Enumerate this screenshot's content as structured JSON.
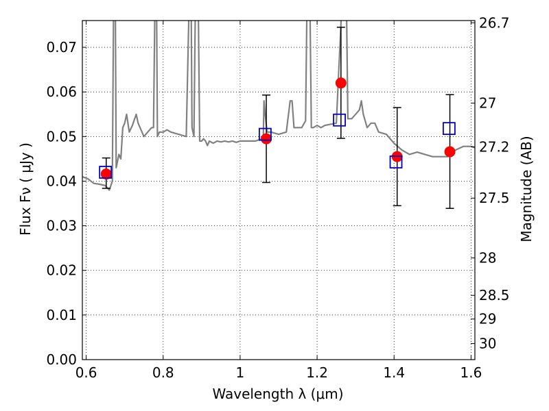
{
  "chart_data": {
    "type": "scatter",
    "xlabel": "Wavelength  λ (μm)",
    "ylabel": "Flux  Fν  ( μJy )",
    "y2label": "Magnitude (AB)",
    "xlim": [
      0.59,
      1.61
    ],
    "ylim": [
      0.0,
      0.076
    ],
    "grid": true,
    "x_ticks": [
      0.6,
      0.8,
      1.0,
      1.2,
      1.4,
      1.6
    ],
    "x_tick_labels": [
      "0.6",
      "0.8",
      "1",
      "1.2",
      "1.4",
      "1.6"
    ],
    "y_ticks": [
      0.0,
      0.01,
      0.02,
      0.03,
      0.04,
      0.05,
      0.06,
      0.07
    ],
    "y_tick_labels": [
      "0.00",
      "0.01",
      "0.02",
      "0.03",
      "0.04",
      "0.05",
      "0.06",
      "0.07"
    ],
    "y2_ticks": [
      {
        "flux": 0.0755,
        "label": "26.7"
      },
      {
        "flux": 0.0575,
        "label": "27"
      },
      {
        "flux": 0.0477,
        "label": "27.2"
      },
      {
        "flux": 0.0362,
        "label": "27.5"
      },
      {
        "flux": 0.0228,
        "label": "28"
      },
      {
        "flux": 0.0144,
        "label": "28.5"
      },
      {
        "flux": 0.0091,
        "label": "29"
      },
      {
        "flux": 0.0036,
        "label": "30"
      }
    ],
    "colors": {
      "model_spectrum": "#808080",
      "observed": "#ff0000",
      "model_photometry": "#0000cc",
      "errorbar": "#000000"
    },
    "series": [
      {
        "kind": "model_spectrum",
        "x": [
          0.59,
          0.605,
          0.62,
          0.635,
          0.65,
          0.66,
          0.668,
          0.672,
          0.675,
          0.678,
          0.685,
          0.69,
          0.695,
          0.7,
          0.705,
          0.712,
          0.72,
          0.73,
          0.735,
          0.74,
          0.745,
          0.75,
          0.76,
          0.77,
          0.775,
          0.78,
          0.782,
          0.785,
          0.79,
          0.8,
          0.81,
          0.82,
          0.84,
          0.86,
          0.87,
          0.872,
          0.875,
          0.88,
          0.885,
          0.89,
          0.895,
          0.9,
          0.905,
          0.91,
          0.915,
          0.92,
          0.93,
          0.94,
          0.95,
          0.96,
          0.97,
          0.98,
          0.99,
          1.0,
          1.02,
          1.04,
          1.05,
          1.06,
          1.062,
          1.065,
          1.07,
          1.08,
          1.1,
          1.12,
          1.13,
          1.135,
          1.14,
          1.145,
          1.15,
          1.16,
          1.17,
          1.175,
          1.18,
          1.185,
          1.19,
          1.2,
          1.21,
          1.22,
          1.25,
          1.27,
          1.275,
          1.28,
          1.29,
          1.3,
          1.31,
          1.315,
          1.32,
          1.33,
          1.34,
          1.35,
          1.36,
          1.38,
          1.4,
          1.42,
          1.44,
          1.46,
          1.48,
          1.5,
          1.52,
          1.54,
          1.56,
          1.58,
          1.6,
          1.61
        ],
        "y": [
          0.041,
          0.0405,
          0.0395,
          0.0393,
          0.039,
          0.038,
          0.04,
          0.09,
          0.09,
          0.043,
          0.046,
          0.045,
          0.052,
          0.053,
          0.055,
          0.051,
          0.0525,
          0.055,
          0.053,
          0.052,
          0.051,
          0.05,
          0.051,
          0.052,
          0.052,
          0.09,
          0.09,
          0.05,
          0.051,
          0.051,
          0.0515,
          0.051,
          0.0505,
          0.05,
          0.09,
          0.09,
          0.052,
          0.05,
          0.09,
          0.09,
          0.049,
          0.049,
          0.0495,
          0.049,
          0.048,
          0.049,
          0.0485,
          0.049,
          0.0488,
          0.049,
          0.0488,
          0.049,
          0.0487,
          0.049,
          0.049,
          0.049,
          0.0493,
          0.0495,
          0.058,
          0.055,
          0.051,
          0.051,
          0.0505,
          0.051,
          0.058,
          0.058,
          0.052,
          0.052,
          0.052,
          0.052,
          0.0535,
          0.09,
          0.09,
          0.052,
          0.052,
          0.0525,
          0.052,
          0.0525,
          0.053,
          0.09,
          0.09,
          0.054,
          0.054,
          0.055,
          0.056,
          0.058,
          0.055,
          0.052,
          0.053,
          0.053,
          0.051,
          0.0505,
          0.0485,
          0.047,
          0.046,
          0.0465,
          0.046,
          0.0455,
          0.0455,
          0.0455,
          0.047,
          0.0478,
          0.0478,
          0.0475
        ]
      },
      {
        "kind": "observed",
        "x": [
          0.652,
          1.068,
          1.262,
          1.408,
          1.545
        ],
        "y": [
          0.0416,
          0.0495,
          0.062,
          0.0455,
          0.0466
        ],
        "yerr_low": [
          0.0032,
          0.0098,
          0.0124,
          0.011,
          0.0127
        ],
        "yerr_high": [
          0.0036,
          0.0098,
          0.0125,
          0.011,
          0.0128
        ]
      },
      {
        "kind": "model_photometry",
        "x": [
          0.65,
          1.065,
          1.258,
          1.405,
          1.543
        ],
        "y": [
          0.042,
          0.0505,
          0.0537,
          0.0443,
          0.0518
        ]
      }
    ]
  }
}
